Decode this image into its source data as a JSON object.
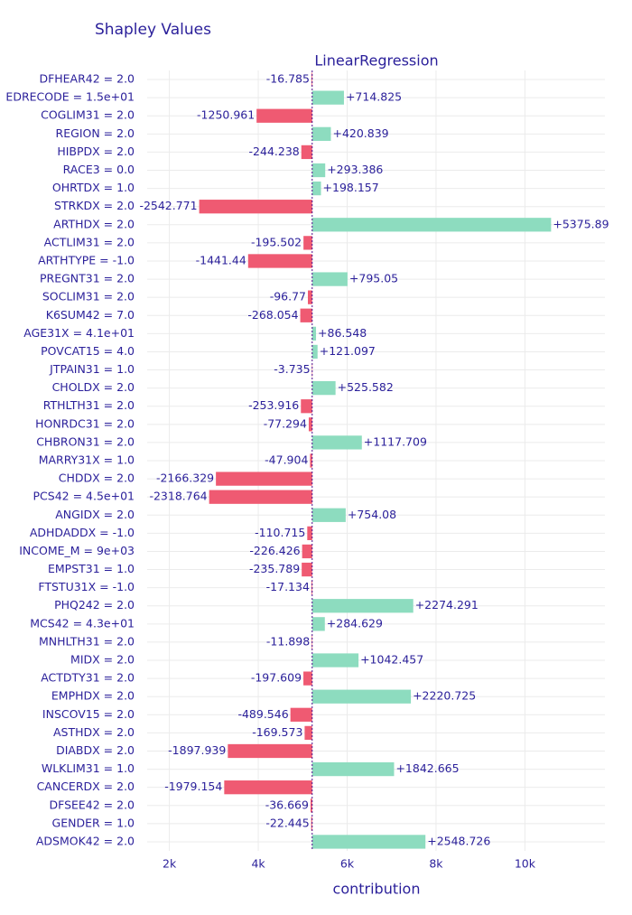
{
  "chart_data": {
    "type": "waterfall-bar",
    "title": "Shapley Values",
    "subtitle": "LinearRegression",
    "x_label": "contribution",
    "categories": [
      "DFHEAR42 = 2.0",
      "EDRECODE = 1.5e+01",
      "COGLIM31 = 2.0",
      "REGION = 2.0",
      "HIBPDX = 2.0",
      "RACE3 = 0.0",
      "OHRTDX = 1.0",
      "STRKDX = 2.0",
      "ARTHDX = 2.0",
      "ACTLIM31 = 2.0",
      "ARTHTYPE = -1.0",
      "PREGNT31 = 2.0",
      "SOCLIM31 = 2.0",
      "K6SUM42 = 7.0",
      "AGE31X = 4.1e+01",
      "POVCAT15 = 4.0",
      "JTPAIN31 = 1.0",
      "CHOLDX = 2.0",
      "RTHLTH31 = 2.0",
      "HONRDC31 = 2.0",
      "CHBRON31 = 2.0",
      "MARRY31X = 1.0",
      "CHDDX = 2.0",
      "PCS42 = 4.5e+01",
      "ANGIDX = 2.0",
      "ADHDADDX = -1.0",
      "INCOME_M = 9e+03",
      "EMPST31 = 1.0",
      "FTSTU31X = -1.0",
      "PHQ242 = 2.0",
      "MCS42 = 4.3e+01",
      "MNHLTH31 = 2.0",
      "MIDX = 2.0",
      "ACTDTY31 = 2.0",
      "EMPHDX = 2.0",
      "INSCOV15 = 2.0",
      "ASTHDX = 2.0",
      "DIABDX = 2.0",
      "WLKLIM31 = 1.0",
      "CANCERDX = 2.0",
      "DFSEE42 = 2.0",
      "GENDER = 1.0",
      "ADSMOK42 = 2.0"
    ],
    "values": [
      -16.785,
      714.825,
      -1250.961,
      420.839,
      -244.238,
      293.386,
      198.157,
      -2542.771,
      5375.89,
      -195.502,
      -1441.44,
      795.05,
      -96.77,
      -268.054,
      86.548,
      121.097,
      -3.735,
      525.582,
      -253.916,
      -77.294,
      1117.709,
      -47.904,
      -2166.329,
      -2318.764,
      754.08,
      -110.715,
      -226.426,
      -235.789,
      -17.134,
      2274.291,
      284.629,
      -11.898,
      1042.457,
      -197.609,
      2220.725,
      -489.546,
      -169.573,
      -1897.939,
      1842.665,
      -1979.154,
      -36.669,
      -22.445,
      2548.726
    ],
    "value_labels": [
      "-16.785",
      "+714.825",
      "-1250.961",
      "+420.839",
      "-244.238",
      "+293.386",
      "+198.157",
      "-2542.771",
      "+5375.89",
      "-195.502",
      "-1441.44",
      "+795.05",
      "-96.77",
      "-268.054",
      "+86.548",
      "+121.097",
      "-3.735",
      "+525.582",
      "-253.916",
      "-77.294",
      "+1117.709",
      "-47.904",
      "-2166.329",
      "-2318.764",
      "+754.08",
      "-110.715",
      "-226.426",
      "-235.789",
      "-17.134",
      "+2274.291",
      "+284.629",
      "-11.898",
      "+1042.457",
      "-197.609",
      "+2220.725",
      "-489.546",
      "-169.573",
      "-1897.939",
      "+1842.665",
      "-1979.154",
      "-36.669",
      "-22.445",
      "+2548.726"
    ],
    "base": 5213,
    "positive_color": "#8ddcbf",
    "negative_color": "#ef5a72",
    "base_line_color": "#4b0a8a",
    "xlim": [
      1500,
      11800
    ],
    "xticks": [
      {
        "value": 2000,
        "label": "2k"
      },
      {
        "value": 4000,
        "label": "4k"
      },
      {
        "value": 6000,
        "label": "6k"
      },
      {
        "value": 8000,
        "label": "8k"
      },
      {
        "value": 10000,
        "label": "10k"
      }
    ],
    "grid": true
  }
}
